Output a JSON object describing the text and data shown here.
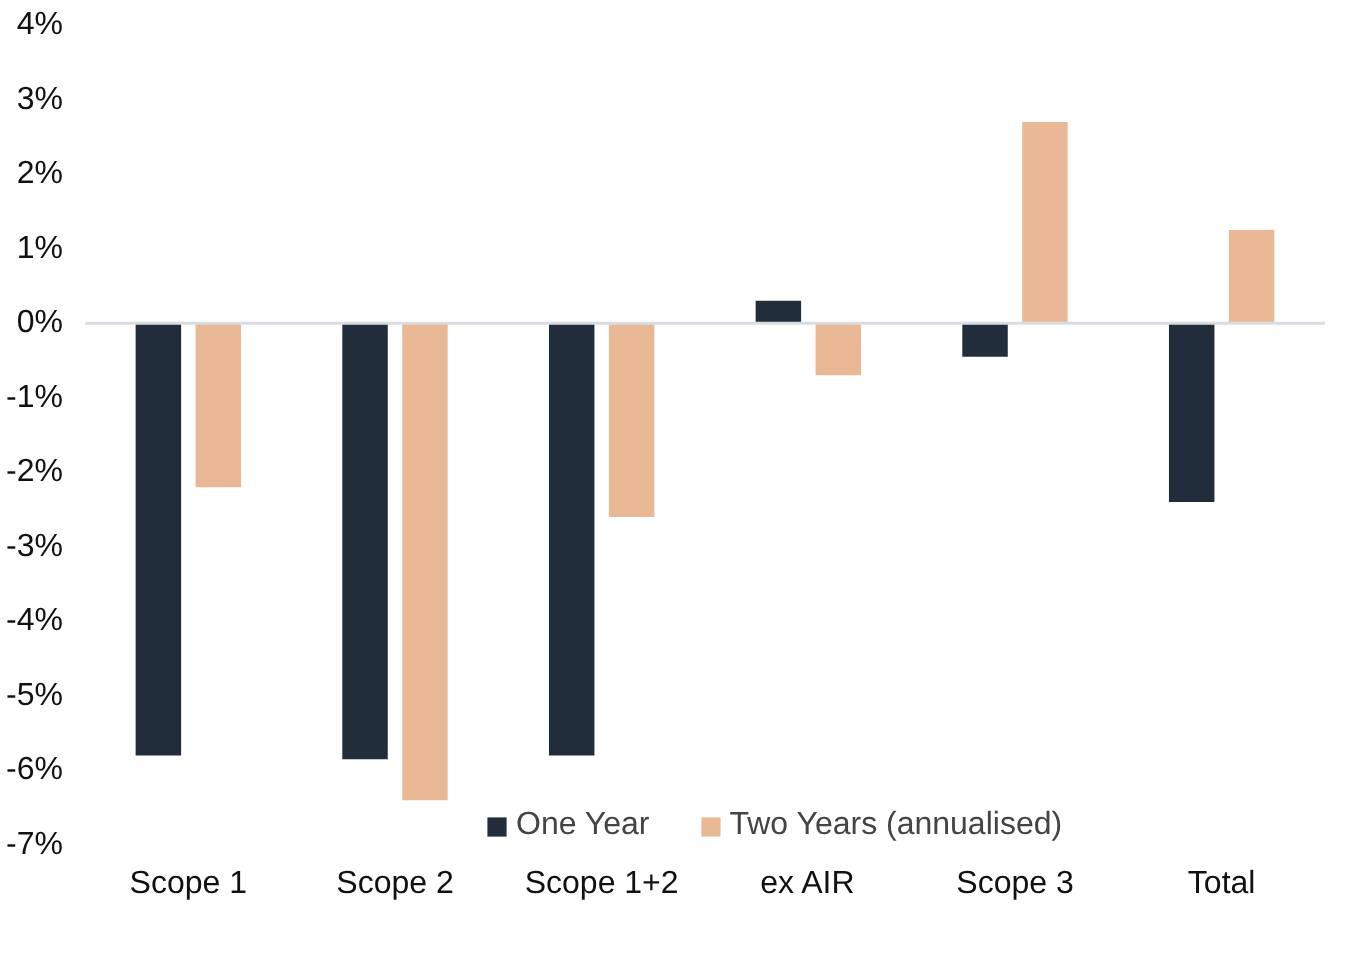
{
  "chart_data": {
    "type": "bar",
    "categories": [
      "Scope 1",
      "Scope 2",
      "Scope 1+2",
      "ex AIR",
      "Scope 3",
      "Total"
    ],
    "series": [
      {
        "name": "One Year",
        "color": "#222d3b",
        "values": [
          -5.8,
          -5.85,
          -5.8,
          0.3,
          -0.45,
          -2.4
        ]
      },
      {
        "name": "Two Years (annualised)",
        "color": "#e8b994",
        "values": [
          -2.2,
          -6.4,
          -2.6,
          -0.7,
          2.7,
          1.25
        ]
      }
    ],
    "ylim": [
      -7,
      4
    ],
    "yticks": [
      {
        "value": 4,
        "label": "4%"
      },
      {
        "value": 3,
        "label": "3%"
      },
      {
        "value": 2,
        "label": "2%"
      },
      {
        "value": 1,
        "label": "1%"
      },
      {
        "value": 0,
        "label": "0%"
      },
      {
        "value": -1,
        "label": "-1%"
      },
      {
        "value": -2,
        "label": "-2%"
      },
      {
        "value": -3,
        "label": "-3%"
      },
      {
        "value": -4,
        "label": "-4%"
      },
      {
        "value": -5,
        "label": "-5%"
      },
      {
        "value": -6,
        "label": "-6%"
      },
      {
        "value": -7,
        "label": "-7%"
      }
    ],
    "ref_lines": [
      {
        "axis": "y",
        "value": 0,
        "label": null,
        "color": "#d9dde3"
      }
    ],
    "grid": false,
    "legend": "bottom"
  }
}
